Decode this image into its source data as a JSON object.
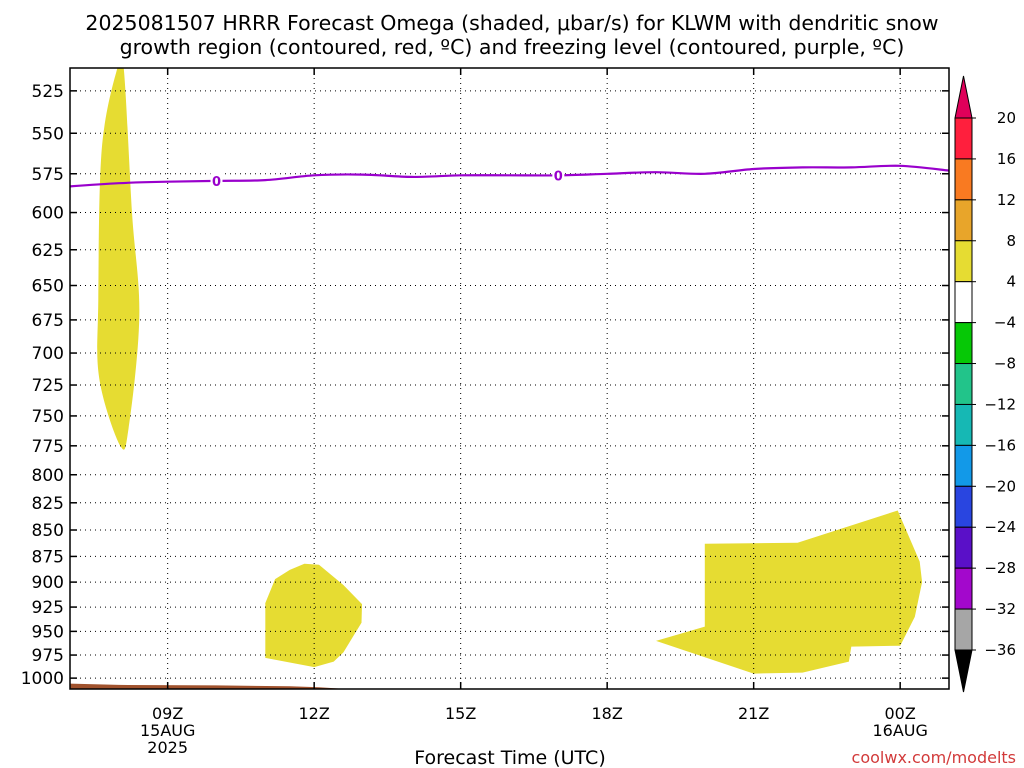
{
  "chart_data": {
    "type": "heatmap",
    "title_line1": "2025081507 HRRR Forecast Omega (shaded, μbar/s) for KLWM with dendritic snow",
    "title_line2": "growth region (contoured, red, ºC) and freezing level (contoured, purple, ºC)",
    "xlabel": "Forecast Time (UTC)",
    "credit": "coolwx.com/modelts",
    "x_unit": "hours since 2025-08-15 07Z",
    "xlim": [
      7,
      25
    ],
    "x_ticks": [
      {
        "x": 9,
        "lines": [
          "09Z",
          "15AUG",
          "2025"
        ]
      },
      {
        "x": 12,
        "lines": [
          "12Z"
        ]
      },
      {
        "x": 15,
        "lines": [
          "15Z"
        ]
      },
      {
        "x": 18,
        "lines": [
          "18Z"
        ]
      },
      {
        "x": 21,
        "lines": [
          "21Z"
        ]
      },
      {
        "x": 24,
        "lines": [
          "00Z",
          "16AUG"
        ]
      }
    ],
    "y_unit": "hPa",
    "y_scale": "log",
    "y_inverted": true,
    "ylim": [
      1012,
      512
    ],
    "y_ticks": [
      525,
      550,
      575,
      600,
      625,
      650,
      675,
      700,
      725,
      750,
      775,
      800,
      825,
      850,
      875,
      900,
      925,
      950,
      975,
      1000
    ],
    "grid": true,
    "freezing_level": {
      "color": "#9900cc",
      "label": "0",
      "label_x": [
        10,
        17
      ],
      "points": [
        [
          7,
          583
        ],
        [
          8,
          581
        ],
        [
          9,
          580
        ],
        [
          10,
          579.5
        ],
        [
          11,
          579
        ],
        [
          12,
          576
        ],
        [
          13,
          575.5
        ],
        [
          14,
          577
        ],
        [
          15,
          576
        ],
        [
          16,
          576
        ],
        [
          17,
          576
        ],
        [
          18,
          575
        ],
        [
          19,
          574
        ],
        [
          20,
          575
        ],
        [
          21,
          572
        ],
        [
          22,
          571
        ],
        [
          23,
          571
        ],
        [
          24,
          570
        ],
        [
          25,
          573
        ]
      ]
    },
    "omega_regions": [
      {
        "level": "4 to 8",
        "color": "#e6dc32",
        "points": [
          [
            7.97,
            512
          ],
          [
            8.1,
            512
          ],
          [
            8.27,
            600
          ],
          [
            8.42,
            672
          ],
          [
            8.2,
            760
          ],
          [
            8.03,
            775
          ],
          [
            7.6,
            720
          ],
          [
            7.58,
            660
          ],
          [
            7.65,
            560
          ]
        ]
      },
      {
        "level": "4 to 8",
        "color": "#e6dc32",
        "points": [
          [
            11,
            921
          ],
          [
            11.2,
            897
          ],
          [
            11.5,
            888
          ],
          [
            11.8,
            882
          ],
          [
            12.1,
            883
          ],
          [
            12.6,
            903
          ],
          [
            12.98,
            922
          ],
          [
            12.97,
            941
          ],
          [
            12.6,
            972
          ],
          [
            12.4,
            982
          ],
          [
            12,
            988
          ],
          [
            11,
            978
          ]
        ]
      },
      {
        "level": "4 to 8",
        "color": "#e6dc32",
        "points": [
          [
            20,
            863
          ],
          [
            21.9,
            862
          ],
          [
            23.95,
            832
          ],
          [
            24.4,
            880
          ],
          [
            24.45,
            900
          ],
          [
            24.3,
            935
          ],
          [
            24,
            965
          ],
          [
            23,
            966
          ],
          [
            22.95,
            982
          ],
          [
            22,
            994
          ],
          [
            21,
            995
          ],
          [
            19,
            960
          ],
          [
            20,
            945
          ]
        ]
      }
    ],
    "surface": {
      "color": "#a0522d",
      "points": [
        [
          7,
          1006
        ],
        [
          8,
          1007.5
        ],
        [
          10,
          1008
        ],
        [
          11.5,
          1009
        ],
        [
          12.1,
          1010
        ],
        [
          12.5,
          1011.5
        ],
        [
          25,
          1011.5
        ],
        [
          25,
          1014
        ],
        [
          7,
          1014
        ]
      ]
    },
    "colorbar": {
      "unit": "μbar/s",
      "levels": [
        {
          "label": "20",
          "color": "#ff1f3d"
        },
        {
          "label": "16",
          "color": "#f97a21"
        },
        {
          "label": "12",
          "color": "#e8a52a"
        },
        {
          "label": "8",
          "color": "#e6dc32"
        },
        {
          "label": "4",
          "color": "#ffffff"
        },
        {
          "label": "−4",
          "color": "#06c806"
        },
        {
          "label": "−8",
          "color": "#22c48a"
        },
        {
          "label": "−12",
          "color": "#16b8b4"
        },
        {
          "label": "−16",
          "color": "#1299e8"
        },
        {
          "label": "−20",
          "color": "#2945e0"
        },
        {
          "label": "−24",
          "color": "#5a10c8"
        },
        {
          "label": "−28",
          "color": "#a308cc"
        },
        {
          "label": "−32",
          "color": "#a6a6a6"
        },
        {
          "label": "−36",
          "color": "#000000"
        }
      ],
      "top_arrow_color": "#e0005a",
      "bottom_arrow_color": "#000000"
    }
  }
}
